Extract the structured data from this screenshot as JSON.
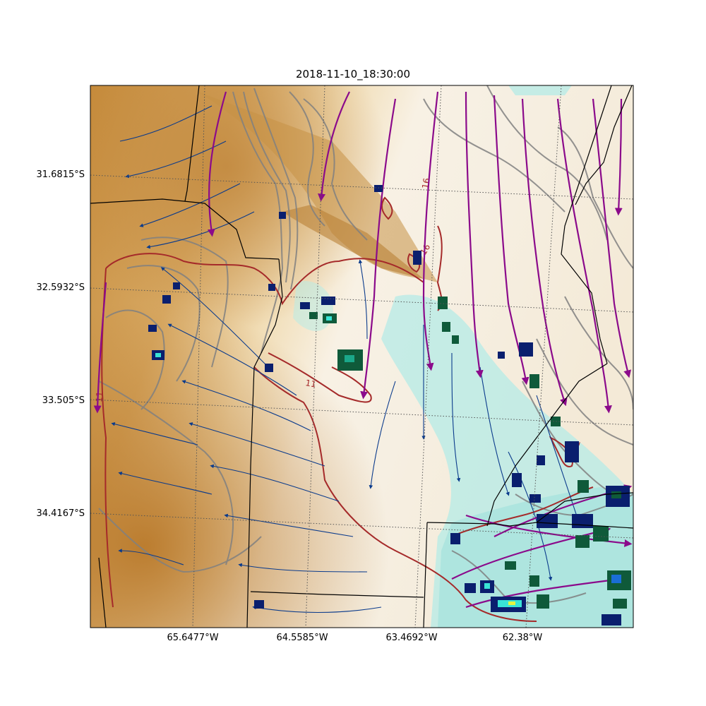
{
  "title": "2018-11-10_18:30:00",
  "lat_labels": [
    "31.6815°S",
    "32.5932°S",
    "33.505°S",
    "34.4167°S"
  ],
  "lon_labels": [
    "65.6477°W",
    "64.5585°W",
    "63.4692°W",
    "62.38°W"
  ],
  "contour_labels": [
    "16",
    "16",
    "11",
    "11",
    "11"
  ],
  "colors": {
    "terrain_dark": "#b87a2c",
    "terrain_mid": "#d9b06a",
    "terrain_light": "#f3e3bf",
    "cloud_cyan": "#9fe0dc",
    "streamline_blue": "#0b3b8c",
    "streamline_purple": "#8b0a8b",
    "contour_gray": "#808080",
    "contour_red": "#a52a2a",
    "precip_navy": "#0a1f6e",
    "precip_green": "#0f5a3a"
  },
  "layers": [
    "terrain-shading",
    "gray-contours",
    "red-contour",
    "blue-streamlines",
    "purple-streamlines",
    "convective-cells",
    "borders",
    "graticule"
  ]
}
